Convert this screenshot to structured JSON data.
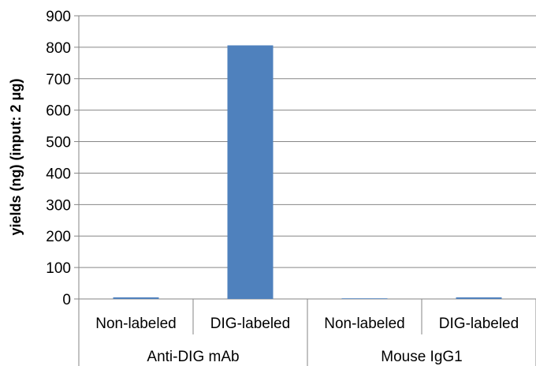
{
  "chart_data": {
    "type": "bar",
    "title": "",
    "ylabel": "yields (ng) (input: 2 μg)",
    "xlabel": "",
    "ylim": [
      0,
      900
    ],
    "ytick_step": 100,
    "yticks": [
      "0",
      "100",
      "200",
      "300",
      "400",
      "500",
      "600",
      "700",
      "800",
      "900"
    ],
    "categories": [
      "Non-labeled",
      "DIG-labeled",
      "Non-labeled",
      "DIG-labeled"
    ],
    "groups": [
      {
        "label": "Anti-DIG mAb",
        "categories": [
          "Non-labeled",
          "DIG-labeled"
        ]
      },
      {
        "label": "Mouse IgG1",
        "categories": [
          "Non-labeled",
          "DIG-labeled"
        ]
      }
    ],
    "values": [
      5,
      806,
      2,
      5
    ],
    "grid": true,
    "bar_color": "#4f81bd",
    "grid_color": "#868686"
  }
}
